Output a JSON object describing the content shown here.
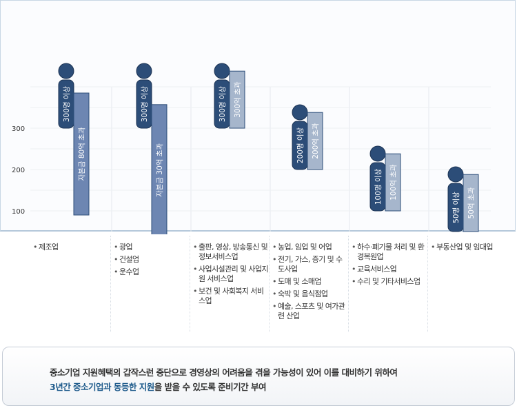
{
  "colors": {
    "employees_bar": "#2c4d78",
    "capital_bar": "#6d86b2",
    "sales_bar": "#a6b6cc",
    "head": "#2c4d78",
    "highlight_text": "#1f5b8c"
  },
  "chart_data": {
    "type": "bar",
    "ylim": [
      50,
      400
    ],
    "yticks": [
      100,
      200,
      300
    ],
    "grid": true,
    "title": "",
    "xlabel": "",
    "ylabel": "",
    "groups": [
      {
        "bars": [
          {
            "kind": "employees",
            "label": "300명 이상",
            "top": 300,
            "bottom": 300
          },
          {
            "kind": "capital",
            "label": "자본금 80억 초과",
            "top": 385,
            "bottom": 90
          }
        ]
      },
      {
        "bars": [
          {
            "kind": "employees",
            "label": "300명 이상",
            "top": 300,
            "bottom": 300
          },
          {
            "kind": "capital",
            "label": "자본금 30억 초과",
            "top": 357,
            "bottom": 40
          }
        ]
      },
      {
        "bars": [
          {
            "kind": "employees",
            "label": "300명 이상",
            "top": 300,
            "bottom": 300
          },
          {
            "kind": "sales",
            "label": "300억 초과",
            "top": 438,
            "bottom": 300
          }
        ]
      },
      {
        "bars": [
          {
            "kind": "employees",
            "label": "200명 이상",
            "top": 200,
            "bottom": 200
          },
          {
            "kind": "sales",
            "label": "200억 초과",
            "top": 338,
            "bottom": 200
          }
        ]
      },
      {
        "bars": [
          {
            "kind": "employees",
            "label": "100명 이상",
            "top": 100,
            "bottom": 100
          },
          {
            "kind": "sales",
            "label": "100억 초과",
            "top": 238,
            "bottom": 100
          }
        ]
      },
      {
        "bars": [
          {
            "kind": "employees",
            "label": "50명 이상",
            "top": 50,
            "bottom": 50
          },
          {
            "kind": "sales",
            "label": "50억 초과",
            "top": 188,
            "bottom": 50
          }
        ]
      }
    ]
  },
  "categories": [
    {
      "items": [
        "제조업"
      ]
    },
    {
      "items": [
        "광업",
        "건설업",
        "운수업"
      ]
    },
    {
      "items": [
        "출판, 영상, 방송통신 및 정보서비스업",
        "사업시설관리 및 사업지원 서비스업",
        "보건 및 사회복지 서비스업"
      ]
    },
    {
      "items": [
        "농업, 임업 및 어업",
        "전기, 가스, 증기 및 수도사업",
        "도매 및 소매업",
        "숙박 및 음식점업",
        "예술, 스포츠 및 여가관련 산업"
      ]
    },
    {
      "items": [
        "하수·폐기물 처리 및 환경복원업",
        "교육서비스업",
        "수리 및 기타서비스업"
      ]
    },
    {
      "items": [
        "부동산업 및 임대업"
      ]
    }
  ],
  "note": {
    "line1": "중소기업 지원혜택의 갑작스런 중단으로 경영상의 어려움을 겪을 가능성이 있어 이를 대비하기 위하여",
    "line2_hl1": "3년간 중소기업과 동등한 지원",
    "line2_rest": "을 받을 수 있도록 준비기간 부여"
  }
}
